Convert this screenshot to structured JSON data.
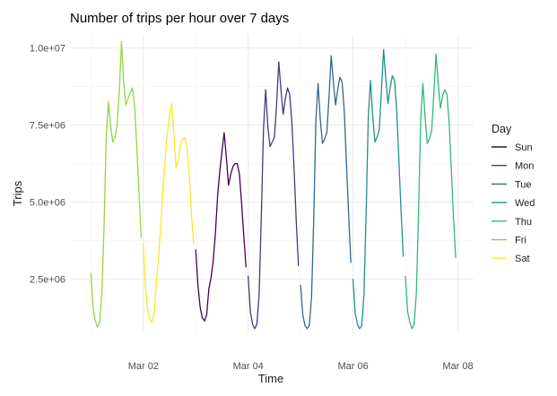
{
  "chart_data": {
    "type": "line",
    "title": "Number of trips per hour over 7 days",
    "xlabel": "Time",
    "ylabel": "Trips",
    "x_tick_labels": [
      "Mar 02",
      "Mar 04",
      "Mar 06",
      "Mar 08"
    ],
    "x_ticks_day": [
      2,
      4,
      6,
      8
    ],
    "xlim_day": [
      0.6,
      8.3
    ],
    "y_tick_labels": [
      "2.5e+06",
      "5.0e+06",
      "7.5e+06",
      "1.0e+07"
    ],
    "y_ticks": [
      2500000,
      5000000,
      7500000,
      10000000
    ],
    "ylim": [
      750000,
      10450000
    ],
    "grid": true,
    "legend_title": "Day",
    "legend_position": "right",
    "series": [
      {
        "name": "Sun",
        "color": "#440154",
        "start_day": 3,
        "values": [
          3450000,
          2300000,
          1600000,
          1250000,
          1150000,
          1350000,
          2200000,
          2550000,
          3100000,
          4000000,
          5200000,
          6000000,
          6650000,
          7250000,
          6450000,
          5550000,
          5900000,
          6150000,
          6250000,
          6250000,
          5900000,
          4950000,
          3900000,
          2900000
        ]
      },
      {
        "name": "Mon",
        "color": "#443a83",
        "start_day": 4,
        "values": [
          2600000,
          1450000,
          1050000,
          900000,
          1050000,
          2000000,
          4500000,
          7350000,
          8650000,
          7450000,
          6800000,
          6950000,
          7100000,
          8150000,
          9550000,
          8650000,
          7850000,
          8350000,
          8700000,
          8500000,
          7600000,
          6100000,
          4400000,
          2950000
        ]
      },
      {
        "name": "Tue",
        "color": "#31688e",
        "start_day": 5,
        "values": [
          2300000,
          1350000,
          1000000,
          900000,
          1000000,
          1900000,
          4400000,
          7650000,
          8850000,
          7700000,
          6900000,
          7050000,
          7250000,
          8400000,
          9750000,
          8900000,
          8150000,
          8650000,
          9050000,
          8900000,
          7950000,
          6250000,
          4600000,
          3050000
        ]
      },
      {
        "name": "Wed",
        "color": "#21908d",
        "start_day": 6,
        "values": [
          2500000,
          1400000,
          1050000,
          900000,
          1000000,
          2000000,
          4600000,
          7800000,
          8950000,
          7800000,
          6950000,
          7100000,
          7350000,
          8600000,
          9950000,
          9000000,
          8200000,
          8700000,
          9100000,
          8950000,
          8000000,
          6350000,
          4700000,
          3250000
        ]
      },
      {
        "name": "Thu",
        "color": "#35b779",
        "start_day": 7,
        "values": [
          2600000,
          1450000,
          1100000,
          900000,
          1050000,
          2050000,
          4650000,
          7750000,
          8850000,
          7750000,
          6900000,
          7050000,
          7300000,
          8500000,
          9800000,
          8850000,
          8050000,
          8450000,
          8650000,
          8500000,
          7600000,
          6050000,
          4500000,
          3200000
        ]
      },
      {
        "name": "Fri",
        "color": "#8fd744",
        "start_day": 1,
        "values": [
          2700000,
          1550000,
          1150000,
          950000,
          1100000,
          2000000,
          4200000,
          7100000,
          8250000,
          7500000,
          6950000,
          7100000,
          7500000,
          8600000,
          10200000,
          8900000,
          8150000,
          8350000,
          8550000,
          8700000,
          8100000,
          6800000,
          5300000,
          3850000
        ]
      },
      {
        "name": "Sat",
        "color": "#fde725",
        "start_day": 2,
        "values": [
          3650000,
          2200000,
          1500000,
          1200000,
          1100000,
          1450000,
          2400000,
          3250000,
          4250000,
          5500000,
          6400000,
          7250000,
          7800000,
          8200000,
          7200000,
          6100000,
          6400000,
          6850000,
          7050000,
          7100000,
          6750000,
          5900000,
          4650000,
          3650000
        ]
      }
    ]
  }
}
